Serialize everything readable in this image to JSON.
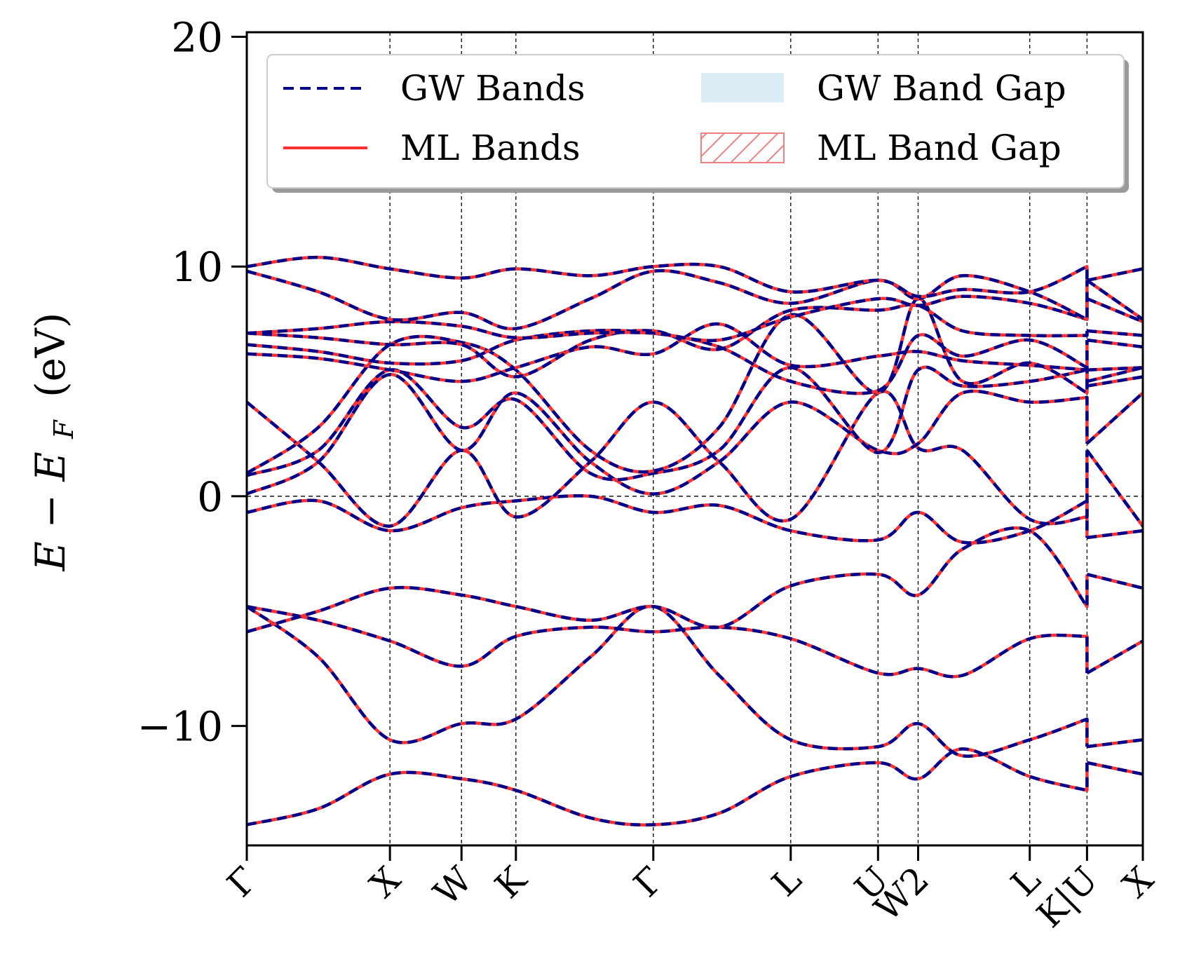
{
  "chart_data": {
    "type": "line",
    "xlabel": "",
    "ylabel_parts": [
      "E",
      "−",
      "E",
      "F",
      "(eV)"
    ],
    "ylim": [
      -15.2,
      20.2
    ],
    "yticks": [
      {
        "value": 20,
        "label": "20"
      },
      {
        "value": 10,
        "label": "10"
      },
      {
        "value": 0,
        "label": "0"
      },
      {
        "value": -10,
        "label": "−10"
      }
    ],
    "kpoints": [
      {
        "pos": 0.0,
        "label": "Γ"
      },
      {
        "pos": 1.0,
        "label": "X"
      },
      {
        "pos": 1.5,
        "label": "W"
      },
      {
        "pos": 1.88,
        "label": "K"
      },
      {
        "pos": 2.84,
        "label": "Γ"
      },
      {
        "pos": 3.8,
        "label": "L"
      },
      {
        "pos": 4.41,
        "label": "U"
      },
      {
        "pos": 4.69,
        "label": "W2"
      },
      {
        "pos": 5.47,
        "label": "L"
      },
      {
        "pos": 5.87,
        "label": "K|U"
      },
      {
        "pos": 6.26,
        "label": "X"
      }
    ],
    "xlim": [
      0,
      6.26
    ],
    "fermi_level": 0,
    "legend": {
      "placement": "top",
      "entries": [
        {
          "label": "GW Bands",
          "style": "dashed",
          "color": "#00008b"
        },
        {
          "label": "ML Bands",
          "style": "solid",
          "color": "#ff3030"
        },
        {
          "label": "GW Band Gap",
          "style": "fill",
          "color": "#add8e6"
        },
        {
          "label": "ML Band Gap",
          "style": "hatch",
          "color": "#f08080"
        }
      ]
    },
    "series": [
      {
        "values": [
          [
            0,
            -14.3
          ],
          [
            0.5,
            -13.6
          ],
          [
            1.0,
            -12.1
          ],
          [
            1.5,
            -12.3
          ],
          [
            1.88,
            -12.8
          ],
          [
            2.4,
            -14.0
          ],
          [
            2.84,
            -14.3
          ],
          [
            3.3,
            -13.8
          ],
          [
            3.8,
            -12.2
          ],
          [
            4.41,
            -11.6
          ],
          [
            4.69,
            -12.3
          ],
          [
            5.0,
            -11.0
          ],
          [
            5.47,
            -12.2
          ],
          [
            5.87,
            -12.8
          ],
          [
            5.87,
            -11.6
          ],
          [
            6.26,
            -12.1
          ]
        ]
      },
      {
        "values": [
          [
            0,
            -4.8
          ],
          [
            0.5,
            -7.0
          ],
          [
            1.0,
            -10.6
          ],
          [
            1.5,
            -9.9
          ],
          [
            1.88,
            -9.7
          ],
          [
            2.4,
            -7.0
          ],
          [
            2.84,
            -4.8
          ],
          [
            3.3,
            -7.8
          ],
          [
            3.8,
            -10.6
          ],
          [
            4.41,
            -10.9
          ],
          [
            4.69,
            -9.9
          ],
          [
            5.0,
            -11.3
          ],
          [
            5.47,
            -10.6
          ],
          [
            5.87,
            -9.7
          ],
          [
            5.87,
            -10.9
          ],
          [
            6.26,
            -10.6
          ]
        ]
      },
      {
        "values": [
          [
            0,
            -4.8
          ],
          [
            0.5,
            -5.4
          ],
          [
            1.0,
            -6.3
          ],
          [
            1.5,
            -7.4
          ],
          [
            1.88,
            -6.1
          ],
          [
            2.4,
            -5.7
          ],
          [
            2.84,
            -5.9
          ],
          [
            3.3,
            -5.7
          ],
          [
            3.8,
            -6.2
          ],
          [
            4.41,
            -7.7
          ],
          [
            4.69,
            -7.5
          ],
          [
            5.0,
            -7.8
          ],
          [
            5.47,
            -6.2
          ],
          [
            5.87,
            -6.1
          ],
          [
            5.87,
            -7.7
          ],
          [
            6.26,
            -6.3
          ]
        ]
      },
      {
        "values": [
          [
            0,
            -5.9
          ],
          [
            0.5,
            -5.0
          ],
          [
            1.0,
            -4.0
          ],
          [
            1.5,
            -4.3
          ],
          [
            1.88,
            -4.8
          ],
          [
            2.4,
            -5.4
          ],
          [
            2.84,
            -4.8
          ],
          [
            3.3,
            -5.7
          ],
          [
            3.8,
            -3.9
          ],
          [
            4.41,
            -3.4
          ],
          [
            4.69,
            -4.3
          ],
          [
            5.0,
            -2.3
          ],
          [
            5.47,
            -1.5
          ],
          [
            5.87,
            -4.8
          ],
          [
            5.87,
            -3.4
          ],
          [
            6.26,
            -4.0
          ]
        ]
      },
      {
        "values": [
          [
            0,
            -0.7
          ],
          [
            0.5,
            -0.2
          ],
          [
            1.0,
            -1.5
          ],
          [
            1.5,
            -0.5
          ],
          [
            1.88,
            -0.2
          ],
          [
            2.4,
            0.0
          ],
          [
            2.84,
            -0.7
          ],
          [
            3.3,
            -0.4
          ],
          [
            3.8,
            -1.5
          ],
          [
            4.41,
            -1.9
          ],
          [
            4.69,
            -0.7
          ],
          [
            5.0,
            -2.0
          ],
          [
            5.47,
            -1.5
          ],
          [
            5.87,
            -0.2
          ],
          [
            5.87,
            -1.8
          ],
          [
            6.26,
            -1.5
          ]
        ]
      },
      {
        "values": [
          [
            0,
            4.1
          ],
          [
            0.5,
            1.5
          ],
          [
            1.0,
            -1.3
          ],
          [
            1.5,
            2.0
          ],
          [
            1.88,
            -0.9
          ],
          [
            2.4,
            1.5
          ],
          [
            2.84,
            4.1
          ],
          [
            3.3,
            1.5
          ],
          [
            3.8,
            -1.0
          ],
          [
            4.41,
            4.5
          ],
          [
            4.69,
            2.1
          ],
          [
            5.0,
            2.0
          ],
          [
            5.47,
            -1.0
          ],
          [
            5.87,
            -0.9
          ],
          [
            5.87,
            2.0
          ],
          [
            6.26,
            -1.3
          ]
        ]
      },
      {
        "values": [
          [
            0,
            0.1
          ],
          [
            0.5,
            1.5
          ],
          [
            1.0,
            5.3
          ],
          [
            1.5,
            2.0
          ],
          [
            1.88,
            4.5
          ],
          [
            2.4,
            1.5
          ],
          [
            2.84,
            0.1
          ],
          [
            3.3,
            1.5
          ],
          [
            3.8,
            4.1
          ],
          [
            4.41,
            2.0
          ],
          [
            4.69,
            2.3
          ],
          [
            5.0,
            4.5
          ],
          [
            5.47,
            4.1
          ],
          [
            5.87,
            4.3
          ],
          [
            5.87,
            2.3
          ],
          [
            6.26,
            4.5
          ]
        ]
      },
      {
        "values": [
          [
            0,
            0.9
          ],
          [
            0.5,
            2.0
          ],
          [
            1.0,
            5.5
          ],
          [
            1.5,
            3.0
          ],
          [
            1.88,
            4.2
          ],
          [
            2.4,
            1.0
          ],
          [
            2.84,
            1.0
          ],
          [
            3.3,
            2.0
          ],
          [
            3.8,
            5.6
          ],
          [
            4.41,
            1.9
          ],
          [
            4.69,
            5.5
          ],
          [
            5.0,
            4.8
          ],
          [
            5.47,
            5.0
          ],
          [
            5.87,
            5.5
          ],
          [
            5.87,
            4.8
          ],
          [
            6.26,
            5.2
          ]
        ]
      },
      {
        "values": [
          [
            0,
            1.0
          ],
          [
            0.5,
            3.0
          ],
          [
            1.0,
            6.6
          ],
          [
            1.5,
            6.7
          ],
          [
            1.88,
            5.5
          ],
          [
            2.4,
            2.0
          ],
          [
            2.84,
            1.1
          ],
          [
            3.3,
            3.0
          ],
          [
            3.8,
            7.9
          ],
          [
            4.41,
            4.5
          ],
          [
            4.69,
            8.6
          ],
          [
            5.0,
            5.0
          ],
          [
            5.47,
            5.8
          ],
          [
            5.87,
            4.5
          ],
          [
            5.87,
            5.5
          ],
          [
            6.26,
            5.6
          ]
        ]
      },
      {
        "values": [
          [
            0,
            6.2
          ],
          [
            0.5,
            6.0
          ],
          [
            1.0,
            5.5
          ],
          [
            1.5,
            5.0
          ],
          [
            1.88,
            5.6
          ],
          [
            2.4,
            6.5
          ],
          [
            2.84,
            6.2
          ],
          [
            3.3,
            7.5
          ],
          [
            3.8,
            5.7
          ],
          [
            4.41,
            6.1
          ],
          [
            4.69,
            6.3
          ],
          [
            5.0,
            5.9
          ],
          [
            5.47,
            5.7
          ],
          [
            5.87,
            5.5
          ],
          [
            5.87,
            5.0
          ],
          [
            6.26,
            5.6
          ]
        ]
      },
      {
        "values": [
          [
            0,
            6.6
          ],
          [
            0.5,
            6.3
          ],
          [
            1.0,
            5.8
          ],
          [
            1.5,
            5.9
          ],
          [
            1.88,
            6.8
          ],
          [
            2.4,
            7.2
          ],
          [
            2.84,
            7.1
          ],
          [
            3.3,
            6.5
          ],
          [
            3.8,
            5.0
          ],
          [
            4.41,
            4.6
          ],
          [
            4.69,
            7.0
          ],
          [
            5.0,
            6.1
          ],
          [
            5.47,
            6.8
          ],
          [
            5.87,
            5.6
          ],
          [
            5.87,
            6.8
          ],
          [
            6.26,
            6.5
          ]
        ]
      },
      {
        "values": [
          [
            0,
            7.1
          ],
          [
            0.5,
            6.9
          ],
          [
            1.0,
            6.6
          ],
          [
            1.5,
            6.6
          ],
          [
            1.88,
            5.2
          ],
          [
            2.4,
            6.8
          ],
          [
            2.84,
            7.2
          ],
          [
            3.3,
            6.4
          ],
          [
            3.8,
            8.1
          ],
          [
            4.41,
            8.1
          ],
          [
            4.69,
            8.3
          ],
          [
            5.0,
            7.2
          ],
          [
            5.47,
            7.0
          ],
          [
            5.87,
            7.0
          ],
          [
            5.87,
            7.2
          ],
          [
            6.26,
            7.0
          ]
        ]
      },
      {
        "values": [
          [
            0,
            7.1
          ],
          [
            0.5,
            7.3
          ],
          [
            1.0,
            7.6
          ],
          [
            1.5,
            7.4
          ],
          [
            1.88,
            6.9
          ],
          [
            2.4,
            7.1
          ],
          [
            2.84,
            7.1
          ],
          [
            3.3,
            6.8
          ],
          [
            3.8,
            7.8
          ],
          [
            4.41,
            8.6
          ],
          [
            4.69,
            8.3
          ],
          [
            5.0,
            8.7
          ],
          [
            5.47,
            8.4
          ],
          [
            5.87,
            7.7
          ],
          [
            5.87,
            8.6
          ],
          [
            6.26,
            7.6
          ]
        ]
      },
      {
        "values": [
          [
            0,
            9.8
          ],
          [
            0.5,
            8.9
          ],
          [
            1.0,
            7.7
          ],
          [
            1.5,
            8.0
          ],
          [
            1.88,
            7.3
          ],
          [
            2.4,
            8.6
          ],
          [
            2.84,
            9.8
          ],
          [
            3.3,
            9.3
          ],
          [
            3.8,
            8.4
          ],
          [
            4.41,
            9.4
          ],
          [
            4.69,
            8.6
          ],
          [
            5.0,
            9.6
          ],
          [
            5.47,
            8.9
          ],
          [
            5.87,
            7.7
          ],
          [
            5.87,
            9.4
          ],
          [
            6.26,
            7.7
          ]
        ]
      },
      {
        "values": [
          [
            0,
            10.0
          ],
          [
            0.5,
            10.4
          ],
          [
            1.0,
            9.9
          ],
          [
            1.5,
            9.5
          ],
          [
            1.88,
            9.9
          ],
          [
            2.4,
            9.6
          ],
          [
            2.84,
            10.0
          ],
          [
            3.3,
            10.0
          ],
          [
            3.8,
            8.9
          ],
          [
            4.41,
            9.4
          ],
          [
            4.69,
            8.7
          ],
          [
            5.0,
            9.0
          ],
          [
            5.47,
            8.9
          ],
          [
            5.87,
            10.0
          ],
          [
            5.87,
            9.4
          ],
          [
            6.26,
            9.9
          ]
        ]
      }
    ]
  }
}
